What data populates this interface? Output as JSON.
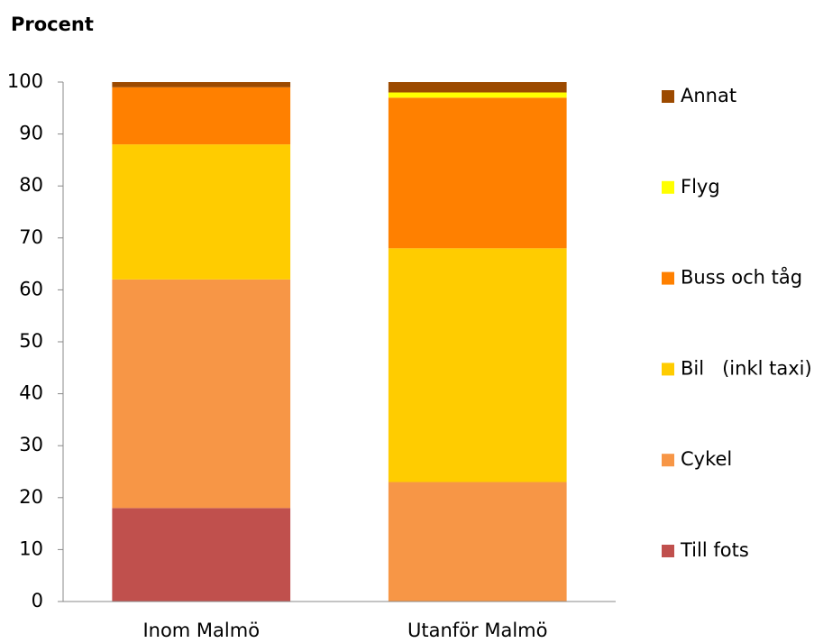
{
  "chart_data": {
    "type": "stacked_bar",
    "title": "Procent",
    "categories": [
      "Inom Malmö",
      "Utanför Malmö"
    ],
    "series": [
      {
        "name": "Till fots",
        "color": "#c0504d",
        "values": [
          18,
          0
        ]
      },
      {
        "name": "Cykel",
        "color": "#f79646",
        "values": [
          44,
          23
        ]
      },
      {
        "name": "Bil   (inkl taxi)",
        "color": "#ffcc00",
        "values": [
          26,
          45
        ]
      },
      {
        "name": "Buss och tåg",
        "color": "#ff8000",
        "values": [
          11,
          29
        ]
      },
      {
        "name": "Flyg",
        "color": "#ffff00",
        "values": [
          0,
          1
        ]
      },
      {
        "name": "Annat",
        "color": "#9c4a00",
        "values": [
          1,
          2
        ]
      }
    ],
    "ylim": [
      0,
      100
    ],
    "yticks": [
      0,
      10,
      20,
      30,
      40,
      50,
      60,
      70,
      80,
      90,
      100
    ],
    "grid": false,
    "legend": "right"
  }
}
